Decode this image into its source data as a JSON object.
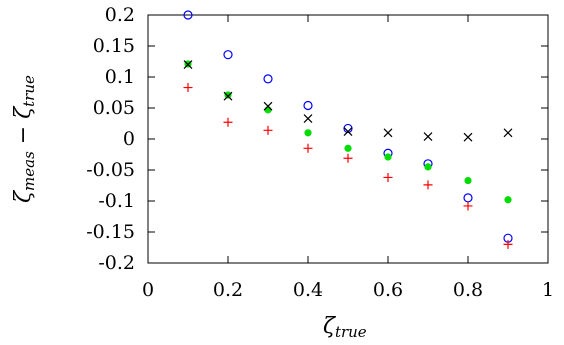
{
  "chart_data": {
    "type": "scatter",
    "title": "",
    "xlabel": "ζ_true",
    "ylabel": "ζ_meas − ζ_true",
    "xlim": [
      0,
      1
    ],
    "ylim": [
      -0.2,
      0.2
    ],
    "x_ticks": [
      "0",
      "0.2",
      "0.4",
      "0.6",
      "0.8",
      "1"
    ],
    "y_ticks": [
      "0.2",
      "0.15",
      "0.1",
      "0.05",
      "0",
      "-0.05",
      "-0.1",
      "-0.15",
      "-0.2"
    ],
    "grid": false,
    "legend": "none",
    "x": [
      0.1,
      0.2,
      0.3,
      0.4,
      0.5,
      0.6,
      0.7,
      0.8,
      0.9
    ],
    "series": [
      {
        "marker": "open-circle",
        "color": "#0000ff",
        "values": [
          0.2,
          0.136,
          0.097,
          0.054,
          0.017,
          -0.023,
          -0.04,
          -0.095,
          -0.16
        ]
      },
      {
        "marker": "filled-circle",
        "color": "#00dd00",
        "values": [
          0.121,
          0.071,
          0.047,
          0.01,
          -0.015,
          -0.029,
          -0.045,
          -0.067,
          -0.098
        ]
      },
      {
        "marker": "cross",
        "color": "#000000",
        "values": [
          0.12,
          0.069,
          0.053,
          0.033,
          0.012,
          0.01,
          0.004,
          0.003,
          0.01
        ]
      },
      {
        "marker": "plus",
        "color": "#ff0000",
        "values": [
          0.083,
          0.027,
          0.014,
          -0.015,
          -0.031,
          -0.062,
          -0.074,
          -0.108,
          -0.17
        ]
      }
    ]
  }
}
